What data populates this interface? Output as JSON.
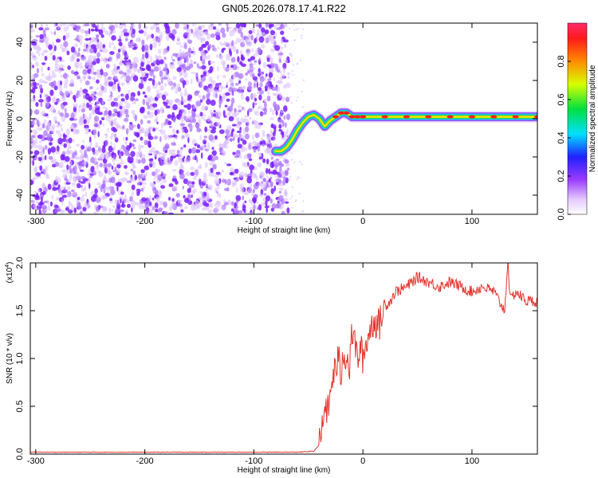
{
  "title": "GN05.2026.078.17.41.R22",
  "colors": {
    "noise": "#8a2be2",
    "snr_line": "#e3362f",
    "axes": "#000000"
  },
  "chart_data": [
    {
      "type": "heatmap",
      "xlabel": "Height of straight line (km)",
      "ylabel": "Frequency (Hz)",
      "xlim": [
        -305,
        160
      ],
      "ylim": [
        -50,
        50
      ],
      "x_ticks": [
        -300,
        -200,
        -100,
        0,
        100
      ],
      "x_tick_labels": [
        "-300",
        "-200",
        "-100",
        "0",
        "100"
      ],
      "y_ticks": [
        -40,
        -20,
        0,
        20,
        40
      ],
      "y_tick_labels": [
        "-40",
        "-20",
        "0",
        "20",
        "40"
      ],
      "colorbar": {
        "label": "Normalized spectral amplitude",
        "range": [
          0,
          1
        ],
        "ticks": [
          0,
          0.2,
          0.4,
          0.6,
          0.8
        ],
        "tick_labels": [
          "0.0",
          "0.2",
          "0.4",
          "0.6",
          "0.8"
        ]
      },
      "noise_region": {
        "x_range": [
          -305,
          -68
        ],
        "amplitude": [
          0.05,
          0.3
        ]
      },
      "ridge": {
        "x": [
          -80,
          -75,
          -70,
          -65,
          -60,
          -55,
          -50,
          -45,
          -40,
          -35,
          -30,
          -25,
          -20,
          -15,
          -10,
          -5,
          0,
          20,
          40,
          60,
          80,
          100,
          120,
          140,
          160
        ],
        "y": [
          -17,
          -17,
          -15,
          -11,
          -6,
          -2,
          1,
          2,
          0,
          -4,
          -1,
          1,
          3,
          3,
          1,
          1,
          1,
          1,
          1,
          1,
          1,
          1,
          1,
          1,
          1
        ]
      }
    },
    {
      "type": "line",
      "xlabel": "Height of straight line (km)",
      "ylabel": "SNR (10 * v/v)",
      "y_scale_label": "(x10",
      "y_scale_exponent": "4",
      "xlim": [
        -305,
        160
      ],
      "ylim": [
        0,
        2.0
      ],
      "x_ticks": [
        -300,
        -200,
        -100,
        0,
        100
      ],
      "x_tick_labels": [
        "-300",
        "-200",
        "-100",
        "0",
        "100"
      ],
      "y_ticks": [
        0,
        0.5,
        1.0,
        1.5,
        2.0
      ],
      "y_tick_labels": [
        "0.0",
        "0.5",
        "1.0",
        "1.5",
        "2.0"
      ],
      "series": [
        {
          "x": [
            -305,
            -250,
            -200,
            -150,
            -100,
            -60,
            -45,
            -40,
            -38,
            -35,
            -32,
            -30,
            -28,
            -25,
            -22,
            -20,
            -18,
            -15,
            -12,
            -10,
            -8,
            -5,
            -2,
            0,
            5,
            10,
            15,
            20,
            25,
            30,
            40,
            50,
            60,
            70,
            80,
            90,
            100,
            110,
            120,
            125,
            130,
            133,
            135,
            140,
            150,
            160
          ],
          "y": [
            0.02,
            0.02,
            0.02,
            0.02,
            0.02,
            0.02,
            0.03,
            0.1,
            0.2,
            0.5,
            0.45,
            0.6,
            0.8,
            0.9,
            1.0,
            0.8,
            1.1,
            1.0,
            0.9,
            1.3,
            1.2,
            1.0,
            1.1,
            1.0,
            1.25,
            1.4,
            1.35,
            1.55,
            1.6,
            1.7,
            1.75,
            1.85,
            1.8,
            1.75,
            1.8,
            1.75,
            1.7,
            1.75,
            1.7,
            1.6,
            1.5,
            2.05,
            1.6,
            1.7,
            1.6,
            1.6
          ]
        }
      ]
    }
  ]
}
